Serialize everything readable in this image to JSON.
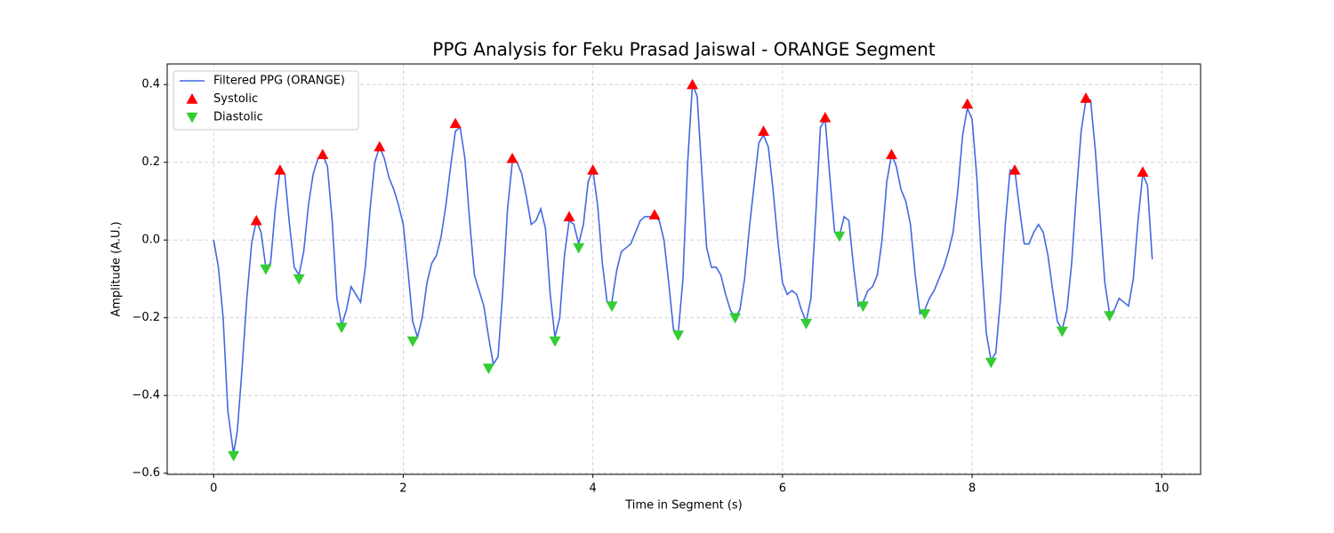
{
  "chart_data": {
    "type": "line",
    "title": "PPG Analysis for Feku Prasad Jaiswal - ORANGE Segment",
    "x_label": "Time in Segment (s)",
    "y_label": "Amplitude (A.U.)",
    "xlim": [
      -0.49,
      10.41
    ],
    "ylim": [
      -0.603,
      0.453
    ],
    "xticks": [
      0,
      2,
      4,
      6,
      8,
      10
    ],
    "yticks": [
      {
        "value": -0.6,
        "label": "−0.6"
      },
      {
        "value": -0.4,
        "label": "−0.4"
      },
      {
        "value": -0.2,
        "label": "−0.2"
      },
      {
        "value": 0,
        "label": "0.0"
      },
      0.2,
      0.4
    ],
    "grid": true,
    "legend": "upper left",
    "series": [
      {
        "name": "Filtered PPG (ORANGE)",
        "type": "line",
        "color": "#4169e1",
        "x": [
          0,
          0.05,
          0.1,
          0.15,
          0.21,
          0.25,
          0.3,
          0.35,
          0.4,
          0.45,
          0.5,
          0.55,
          0.6,
          0.65,
          0.7,
          0.75,
          0.8,
          0.85,
          0.9,
          0.95,
          1.0,
          1.05,
          1.1,
          1.15,
          1.2,
          1.25,
          1.3,
          1.35,
          1.4,
          1.45,
          1.5,
          1.55,
          1.6,
          1.65,
          1.7,
          1.75,
          1.8,
          1.85,
          1.9,
          1.95,
          2.0,
          2.05,
          2.1,
          2.15,
          2.2,
          2.25,
          2.3,
          2.35,
          2.4,
          2.45,
          2.5,
          2.55,
          2.6,
          2.65,
          2.7,
          2.75,
          2.8,
          2.85,
          2.9,
          2.95,
          3.0,
          3.05,
          3.1,
          3.15,
          3.2,
          3.25,
          3.3,
          3.35,
          3.4,
          3.45,
          3.5,
          3.55,
          3.6,
          3.65,
          3.7,
          3.75,
          3.8,
          3.85,
          3.9,
          3.95,
          4.0,
          4.05,
          4.1,
          4.15,
          4.2,
          4.25,
          4.3,
          4.35,
          4.4,
          4.45,
          4.5,
          4.55,
          4.6,
          4.65,
          4.7,
          4.75,
          4.8,
          4.85,
          4.9,
          4.95,
          5.0,
          5.05,
          5.1,
          5.15,
          5.2,
          5.25,
          5.3,
          5.35,
          5.4,
          5.45,
          5.5,
          5.55,
          5.6,
          5.65,
          5.7,
          5.75,
          5.8,
          5.85,
          5.9,
          5.95,
          6.0,
          6.05,
          6.1,
          6.15,
          6.2,
          6.25,
          6.3,
          6.35,
          6.4,
          6.45,
          6.5,
          6.55,
          6.6,
          6.65,
          6.7,
          6.75,
          6.8,
          6.85,
          6.9,
          6.95,
          7.0,
          7.05,
          7.1,
          7.15,
          7.2,
          7.25,
          7.3,
          7.35,
          7.4,
          7.45,
          7.5,
          7.55,
          7.6,
          7.65,
          7.7,
          7.75,
          7.8,
          7.85,
          7.9,
          7.95,
          8.0,
          8.05,
          8.1,
          8.15,
          8.2,
          8.25,
          8.3,
          8.35,
          8.4,
          8.45,
          8.5,
          8.55,
          8.6,
          8.65,
          8.7,
          8.75,
          8.8,
          8.85,
          8.9,
          8.95,
          9.0,
          9.05,
          9.1,
          9.15,
          9.2,
          9.25,
          9.3,
          9.35,
          9.4,
          9.45,
          9.5,
          9.55,
          9.6,
          9.65,
          9.7,
          9.75,
          9.8,
          9.85,
          9.9
        ],
        "values": [
          0,
          -0.07,
          -0.2,
          -0.44,
          -0.55,
          -0.49,
          -0.33,
          -0.15,
          -0.01,
          0.05,
          0.02,
          -0.07,
          -0.06,
          0.08,
          0.18,
          0.17,
          0.04,
          -0.07,
          -0.09,
          -0.03,
          0.09,
          0.17,
          0.21,
          0.22,
          0.19,
          0.05,
          -0.15,
          -0.22,
          -0.18,
          -0.12,
          -0.14,
          -0.16,
          -0.07,
          0.08,
          0.2,
          0.24,
          0.21,
          0.16,
          0.13,
          0.09,
          0.04,
          -0.08,
          -0.21,
          -0.25,
          -0.2,
          -0.11,
          -0.06,
          -0.04,
          0.01,
          0.09,
          0.19,
          0.28,
          0.29,
          0.21,
          0.05,
          -0.09,
          -0.13,
          -0.17,
          -0.25,
          -0.32,
          -0.3,
          -0.13,
          0.08,
          0.2,
          0.2,
          0.17,
          0.11,
          0.04,
          0.05,
          0.08,
          0.03,
          -0.14,
          -0.25,
          -0.2,
          -0.04,
          0.05,
          0.04,
          -0.01,
          0.04,
          0.15,
          0.18,
          0.09,
          -0.06,
          -0.16,
          -0.16,
          -0.08,
          -0.03,
          -0.02,
          -0.01,
          0.02,
          0.05,
          0.06,
          0.06,
          0.06,
          0.05,
          0.0,
          -0.11,
          -0.23,
          -0.24,
          -0.1,
          0.2,
          0.4,
          0.37,
          0.17,
          -0.02,
          -0.07,
          -0.07,
          -0.09,
          -0.14,
          -0.18,
          -0.2,
          -0.18,
          -0.1,
          0.03,
          0.14,
          0.25,
          0.27,
          0.24,
          0.13,
          0.0,
          -0.11,
          -0.14,
          -0.13,
          -0.14,
          -0.18,
          -0.21,
          -0.15,
          0.06,
          0.29,
          0.31,
          0.16,
          0.02,
          0.01,
          0.06,
          0.05,
          -0.07,
          -0.17,
          -0.16,
          -0.13,
          -0.12,
          -0.09,
          0.0,
          0.15,
          0.22,
          0.19,
          0.13,
          0.1,
          0.04,
          -0.09,
          -0.19,
          -0.18,
          -0.15,
          -0.13,
          -0.1,
          -0.07,
          -0.03,
          0.02,
          0.13,
          0.27,
          0.34,
          0.31,
          0.16,
          -0.06,
          -0.24,
          -0.31,
          -0.29,
          -0.15,
          0.04,
          0.18,
          0.18,
          0.08,
          -0.01,
          -0.01,
          0.02,
          0.04,
          0.02,
          -0.04,
          -0.13,
          -0.21,
          -0.23,
          -0.18,
          -0.06,
          0.12,
          0.28,
          0.36,
          0.36,
          0.23,
          0.06,
          -0.11,
          -0.19,
          -0.18,
          -0.15,
          -0.16,
          -0.17,
          -0.1,
          0.05,
          0.17,
          0.14,
          -0.05
        ]
      },
      {
        "name": "Systolic",
        "type": "scatter",
        "marker": "triangle-up",
        "color": "#ff0000",
        "x": [
          0.45,
          0.7,
          1.15,
          1.75,
          2.55,
          3.15,
          3.75,
          4.0,
          4.65,
          5.05,
          5.8,
          6.45,
          7.15,
          7.95,
          8.45,
          9.2,
          9.8
        ],
        "values": [
          0.05,
          0.18,
          0.22,
          0.24,
          0.3,
          0.21,
          0.06,
          0.18,
          0.065,
          0.4,
          0.28,
          0.315,
          0.22,
          0.35,
          0.18,
          0.365,
          0.175
        ]
      },
      {
        "name": "Diastolic",
        "type": "scatter",
        "marker": "triangle-down",
        "color": "#32cd32",
        "x": [
          0.21,
          0.55,
          0.9,
          1.35,
          2.1,
          2.9,
          3.6,
          3.85,
          4.2,
          4.9,
          5.5,
          6.25,
          6.6,
          6.85,
          7.5,
          8.2,
          8.95,
          9.45
        ],
        "values": [
          -0.555,
          -0.075,
          -0.1,
          -0.225,
          -0.26,
          -0.33,
          -0.26,
          -0.02,
          -0.17,
          -0.245,
          -0.2,
          -0.215,
          0.01,
          -0.17,
          -0.19,
          -0.315,
          -0.235,
          -0.195
        ]
      }
    ]
  }
}
